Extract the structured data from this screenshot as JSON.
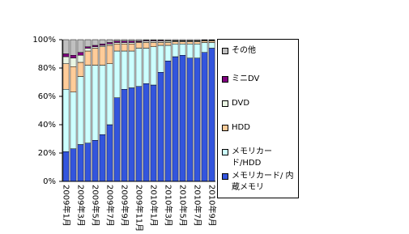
{
  "chart_data": {
    "type": "stacked-bar",
    "categories": [
      "2009年1月",
      null,
      "2009年3月",
      null,
      "2009年5月",
      null,
      "2009年7月",
      null,
      "2009年9月",
      null,
      "2009年11月",
      null,
      "2010年1月",
      null,
      "2010年3月",
      null,
      "2010年5月",
      null,
      "2010年7月",
      null,
      "2010年9月"
    ],
    "series": [
      {
        "name": "メモリカード/ 内蔵メモリ",
        "color": "#3355dd",
        "values": [
          21,
          23,
          26,
          27,
          29,
          33,
          40,
          59,
          65,
          66,
          67,
          69,
          68,
          77,
          85,
          88,
          89,
          87,
          87,
          91,
          94
        ]
      },
      {
        "name": "メモリカード/HDD",
        "color": "#ccffff",
        "values": [
          44,
          40,
          48,
          55,
          53,
          49,
          43,
          33,
          27,
          26,
          27,
          25,
          27,
          19,
          11,
          9,
          8,
          10,
          10,
          7,
          4
        ]
      },
      {
        "name": "HDD",
        "color": "#ffcc99",
        "values": [
          18,
          18,
          10,
          10,
          12,
          13,
          13,
          5,
          5,
          5,
          4,
          4,
          3,
          2,
          2,
          1.5,
          1.5,
          1.5,
          1.5,
          1,
          1
        ]
      },
      {
        "name": "DVD",
        "color": "#eaf6e4",
        "values": [
          5,
          6,
          5,
          2,
          1,
          1,
          1,
          1,
          1,
          1,
          0.5,
          1,
          1,
          1,
          1,
          0.5,
          0.5,
          0.5,
          0.5,
          0.5,
          0.5
        ]
      },
      {
        "name": "ミニDV",
        "color": "#800080",
        "values": [
          2,
          2,
          2,
          1,
          1,
          1,
          1,
          1,
          1,
          1,
          0.5,
          0.5,
          0.5,
          0.5,
          0.3,
          0.3,
          0.3,
          0.3,
          0.3,
          0.3,
          0.2
        ]
      },
      {
        "name": "その他",
        "color": "#c0c0c0",
        "values": [
          10,
          11,
          9,
          5,
          4,
          3,
          2,
          1,
          1,
          1,
          1,
          0.5,
          0.5,
          0.5,
          0.7,
          0.7,
          0.7,
          0.7,
          0.7,
          0.2,
          0.3
        ]
      }
    ],
    "ylim": [
      0,
      100
    ],
    "yticks": [
      {
        "value": 0,
        "label": "0%"
      },
      {
        "value": 20,
        "label": "20%"
      },
      {
        "value": 40,
        "label": "40%"
      },
      {
        "value": 60,
        "label": "60%"
      },
      {
        "value": 80,
        "label": "80%"
      },
      {
        "value": 100,
        "label": "100%"
      }
    ],
    "legend": "right"
  }
}
